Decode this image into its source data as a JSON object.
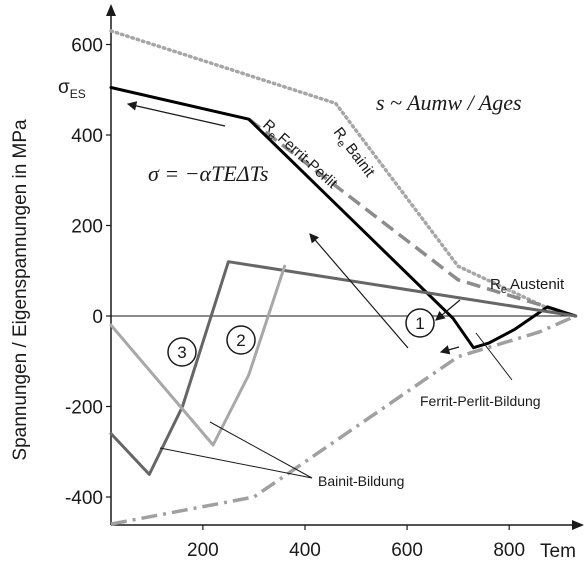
{
  "chart_data": {
    "type": "line",
    "xlabel": "Tem",
    "ylabel": "Spannungen / Eigenspannungen in MPa",
    "xlim": [
      20,
      930
    ],
    "ylim": [
      -480,
      650
    ],
    "x_ticks": [
      200,
      400,
      600,
      800
    ],
    "y_ticks": [
      600,
      400,
      200,
      0,
      -200,
      -400
    ],
    "y_tick_labels": [
      "600",
      "400",
      "200",
      "0",
      "-200",
      "-400"
    ],
    "x_tick_labels": [
      "200",
      "400",
      "600",
      "800"
    ],
    "series": [
      {
        "key": "re_bainit",
        "name": "Re Bainit",
        "color": "#a6a6a6",
        "style": "dotted",
        "x": [
          20,
          460,
          700,
          870,
          930
        ],
        "y": [
          630,
          470,
          110,
          20,
          0
        ]
      },
      {
        "key": "re_ferrit",
        "name": "Re Ferrit-Perlit",
        "color": "#8c8c8c",
        "style": "dashed",
        "x": [
          290,
          700,
          860,
          930
        ],
        "y": [
          435,
          80,
          25,
          0
        ]
      },
      {
        "key": "re_austenit",
        "name": "Re Austenit",
        "color": "#a0a0a0",
        "style": "dashdot",
        "x": [
          20,
          300,
          700,
          860,
          930
        ],
        "y": [
          -460,
          -400,
          -90,
          -35,
          0
        ]
      },
      {
        "key": "stress_path",
        "name": "",
        "color": "#000000",
        "style": "solid",
        "x": [
          20,
          290,
          690,
          730,
          760,
          810,
          875,
          930
        ],
        "y": [
          505,
          435,
          -5,
          -70,
          -60,
          -30,
          20,
          0
        ]
      },
      {
        "key": "path_3",
        "name": "",
        "color": "#666666",
        "style": "solid",
        "x": [
          20,
          95,
          160,
          250,
          930
        ],
        "y": [
          -260,
          -350,
          -200,
          120,
          0
        ]
      },
      {
        "key": "path_2",
        "name": "",
        "color": "#a8a8a8",
        "style": "solid",
        "x": [
          20,
          220,
          290,
          360
        ],
        "y": [
          -20,
          -285,
          -130,
          110
        ]
      }
    ],
    "annotations": {
      "sigma_es": "σ",
      "sigma_es_sub": "ES",
      "formula_s": "s ~ Aumw / Ages",
      "formula_sigma": "σ = −αTEΔTs",
      "re_bainit_label": "Bainit",
      "re_ferrit_label": "Ferrit-Perlit",
      "re_austenit_label": "Austenit",
      "re_prefix": "R",
      "re_sub": "e",
      "ferrit_bildung": "Ferrit-Perlit-Bildung",
      "bainit_bildung": "Bainit-Bildung",
      "circle_1": "1",
      "circle_2": "2",
      "circle_3": "3"
    }
  }
}
